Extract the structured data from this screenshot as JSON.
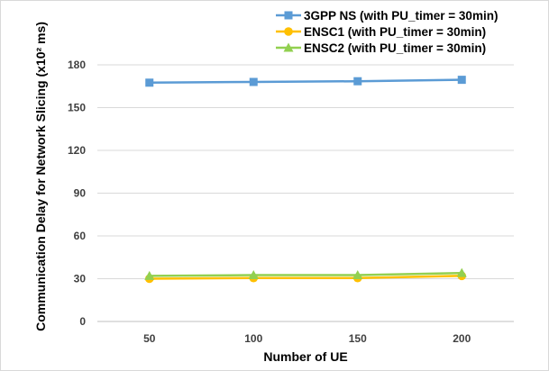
{
  "chart_data": {
    "type": "line",
    "title": "",
    "xlabel": "Number of UE",
    "ylabel": "Communication Delay for Network Slicing (x10² ms)",
    "categories": [
      "50",
      "100",
      "150",
      "200"
    ],
    "ylim": [
      0,
      180
    ],
    "yticks": [
      "0",
      "30",
      "60",
      "90",
      "120",
      "150",
      "180"
    ],
    "grid": true,
    "legend_position": "top-right",
    "series": [
      {
        "name": "3GPP NS (with PU_timer = 30min)",
        "values": [
          167.5,
          168,
          168.5,
          169.5
        ],
        "color": "#5B9BD5",
        "marker": "square"
      },
      {
        "name": "ENSC1 (with PU_timer = 30min)",
        "values": [
          30,
          30.5,
          30.5,
          32
        ],
        "color": "#FFC000",
        "marker": "circle"
      },
      {
        "name": "ENSC2 (with PU_timer = 30min)",
        "values": [
          32,
          32.5,
          32.5,
          34
        ],
        "color": "#92D050",
        "marker": "triangle"
      }
    ]
  }
}
